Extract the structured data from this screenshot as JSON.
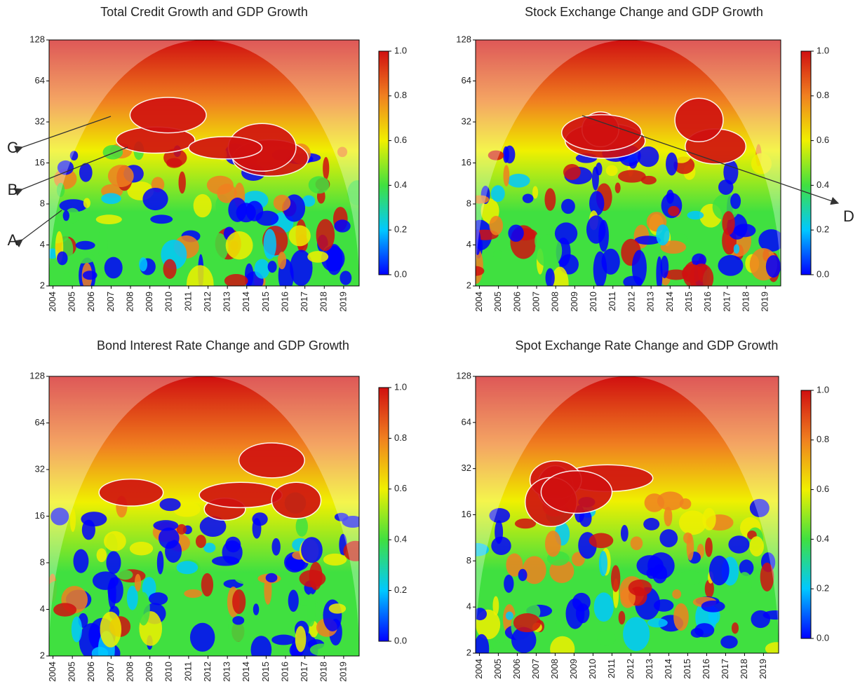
{
  "chart_data": [
    {
      "type": "heatmap",
      "title": "Total Credit Growth and GDP Growth",
      "xlim": [
        2003.8,
        2019.8
      ],
      "xticks": [
        2004,
        2005,
        2006,
        2007,
        2008,
        2009,
        2010,
        2011,
        2012,
        2013,
        2014,
        2015,
        2016,
        2017,
        2018,
        2019
      ],
      "ylim": [
        2,
        128
      ],
      "yticks": [
        2,
        4,
        8,
        16,
        32,
        64,
        128
      ],
      "ylog": true,
      "colorbar_lim": [
        0,
        1
      ],
      "colorbar_ticks": [
        {
          "value": 0,
          "label": "0.0"
        },
        {
          "value": 0.2,
          "label": "0.2"
        },
        {
          "value": 0.4,
          "label": "0.4"
        },
        {
          "value": 0.6,
          "label": "0.6"
        },
        {
          "value": 0.8,
          "label": "0.8"
        },
        {
          "value": 1,
          "label": "1.0"
        }
      ],
      "colormap": [
        "#0000ff",
        "#00c8ff",
        "#40e040",
        "#f0f000",
        "#f08020",
        "#d01010"
      ],
      "annotations": [
        {
          "text": "C"
        },
        {
          "text": "B"
        },
        {
          "text": "A"
        }
      ]
    },
    {
      "type": "heatmap",
      "title": "Stock Exchange Change and GDP Growth",
      "xlim": [
        2003.8,
        2019.8
      ],
      "xticks": [
        2004,
        2005,
        2006,
        2007,
        2008,
        2009,
        2010,
        2011,
        2012,
        2013,
        2014,
        2015,
        2016,
        2017,
        2018,
        2019
      ],
      "ylim": [
        2,
        128
      ],
      "yticks": [
        2,
        4,
        8,
        16,
        32,
        64,
        128
      ],
      "ylog": true,
      "colorbar_lim": [
        0,
        1
      ],
      "colorbar_ticks": [
        {
          "value": 0,
          "label": "0.0"
        },
        {
          "value": 0.2,
          "label": "0.2"
        },
        {
          "value": 0.4,
          "label": "0.4"
        },
        {
          "value": 0.6,
          "label": "0.6"
        },
        {
          "value": 0.8,
          "label": "0.8"
        },
        {
          "value": 1,
          "label": "1.0"
        }
      ],
      "colormap": [
        "#0000ff",
        "#00c8ff",
        "#40e040",
        "#f0f000",
        "#f08020",
        "#d01010"
      ],
      "annotations": [
        {
          "text": "D"
        }
      ]
    },
    {
      "type": "heatmap",
      "title": "Bond Interest Rate Change and GDP Growth",
      "xlim": [
        2003.8,
        2019.8
      ],
      "xticks": [
        2004,
        2005,
        2006,
        2007,
        2008,
        2009,
        2010,
        2011,
        2012,
        2013,
        2014,
        2015,
        2016,
        2017,
        2018,
        2019
      ],
      "ylim": [
        2,
        128
      ],
      "yticks": [
        2,
        4,
        8,
        16,
        32,
        64,
        128
      ],
      "ylog": true,
      "colorbar_lim": [
        0,
        1
      ],
      "colorbar_ticks": [
        {
          "value": 0,
          "label": "0.0"
        },
        {
          "value": 0.2,
          "label": "0.2"
        },
        {
          "value": 0.4,
          "label": "0.4"
        },
        {
          "value": 0.6,
          "label": "0.6"
        },
        {
          "value": 0.8,
          "label": "0.8"
        },
        {
          "value": 1,
          "label": "1.0"
        }
      ],
      "colormap": [
        "#0000ff",
        "#00c8ff",
        "#40e040",
        "#f0f000",
        "#f08020",
        "#d01010"
      ]
    },
    {
      "type": "heatmap",
      "title": "Spot Exchange Rate Change and GDP Growth",
      "xlim": [
        2003.8,
        2019.8
      ],
      "xticks": [
        2004,
        2005,
        2006,
        2007,
        2008,
        2009,
        2010,
        2011,
        2012,
        2013,
        2014,
        2015,
        2016,
        2017,
        2018,
        2019
      ],
      "ylim": [
        2,
        128
      ],
      "yticks": [
        2,
        4,
        8,
        16,
        32,
        64,
        128
      ],
      "ylog": true,
      "colorbar_lim": [
        0,
        1
      ],
      "colorbar_ticks": [
        {
          "value": 0,
          "label": "0.0"
        },
        {
          "value": 0.2,
          "label": "0.2"
        },
        {
          "value": 0.4,
          "label": "0.4"
        },
        {
          "value": 0.6,
          "label": "0.6"
        },
        {
          "value": 0.8,
          "label": "0.8"
        },
        {
          "value": 1,
          "label": "1.0"
        }
      ],
      "colormap": [
        "#0000ff",
        "#00c8ff",
        "#40e040",
        "#f0f000",
        "#f08020",
        "#d01010"
      ]
    }
  ]
}
